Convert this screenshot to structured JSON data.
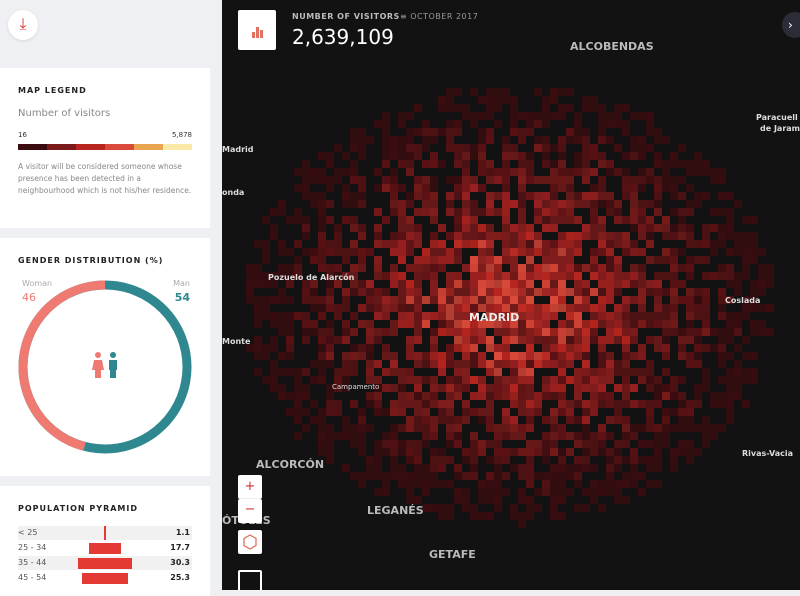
{
  "download_icon": "download-icon",
  "legend": {
    "title": "MAP LEGEND",
    "subtitle": "Number of visitors",
    "min": "16",
    "max": "5,878",
    "colors": [
      "#3a0c10",
      "#7a1a1a",
      "#b8261f",
      "#d94a3a",
      "#eaa550",
      "#fbe9a8"
    ],
    "note": "A visitor will be considered someone whose presence has been detected in a neighbourhood which is not his/her residence."
  },
  "gender": {
    "title": "GENDER DISTRIBUTION (%)",
    "woman_label": "Woman",
    "woman_value": "46",
    "man_label": "Man",
    "man_value": "54",
    "woman_color": "#ee7a72",
    "man_color": "#2f8790"
  },
  "pyramid": {
    "title": "POPULATION PYRAMID",
    "rows": [
      {
        "age": "< 25",
        "value": "1.1"
      },
      {
        "age": "25 - 34",
        "value": "17.7"
      },
      {
        "age": "35 - 44",
        "value": "30.3"
      },
      {
        "age": "45 - 54",
        "value": "25.3"
      }
    ]
  },
  "header": {
    "metric": "NUMBER OF VISITORS",
    "period": "OCTOBER 2017",
    "total": "2,639,109"
  },
  "map": {
    "labels": {
      "alcobendas": "ALCOBENDAS",
      "paracuellos1": "Paracuell",
      "paracuellos2": "de Jaram",
      "madrid_w": "Madrid",
      "ronda": "onda",
      "pozuelo": "Pozuelo de Alarcón",
      "madrid": "MADRID",
      "coslada": "Coslada",
      "monte": "Monte",
      "campamento": "Campamento",
      "alcorcon": "ALCORCÓN",
      "rivas": "Rivas-Vacia",
      "leganes": "LEGANÉS",
      "mostoles": "ÓTOLES",
      "getafe": "GETAFE"
    },
    "zoom_in": "+",
    "zoom_out": "−",
    "expand": "›"
  }
}
